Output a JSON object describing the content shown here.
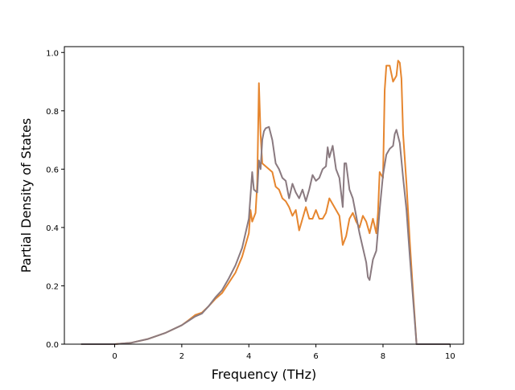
{
  "chart_data": {
    "type": "line",
    "title": "",
    "xlabel": "Frequency (THz)",
    "ylabel": "Partial Density of States",
    "xlim": [
      -1.5,
      10.4
    ],
    "ylim": [
      0.0,
      1.02
    ],
    "x_ticks": [
      0,
      2,
      4,
      6,
      8,
      10
    ],
    "x_tick_labels": [
      "0",
      "2",
      "4",
      "6",
      "8",
      "10"
    ],
    "y_ticks": [
      0.0,
      0.2,
      0.4,
      0.6,
      0.8,
      1.0
    ],
    "y_tick_labels": [
      "0.0",
      "0.2",
      "0.4",
      "0.6",
      "0.8",
      "1.0"
    ],
    "grid": false,
    "legend": "none",
    "series": [
      {
        "color": "#e6862f",
        "points": [
          [
            -1.0,
            0.0
          ],
          [
            0.0,
            0.0
          ],
          [
            0.5,
            0.005
          ],
          [
            1.0,
            0.018
          ],
          [
            1.5,
            0.038
          ],
          [
            2.0,
            0.065
          ],
          [
            2.2,
            0.082
          ],
          [
            2.4,
            0.1
          ],
          [
            2.6,
            0.108
          ],
          [
            2.8,
            0.13
          ],
          [
            3.0,
            0.155
          ],
          [
            3.2,
            0.175
          ],
          [
            3.4,
            0.21
          ],
          [
            3.6,
            0.245
          ],
          [
            3.8,
            0.3
          ],
          [
            4.0,
            0.38
          ],
          [
            4.05,
            0.46
          ],
          [
            4.1,
            0.42
          ],
          [
            4.2,
            0.45
          ],
          [
            4.25,
            0.55
          ],
          [
            4.3,
            0.895
          ],
          [
            4.35,
            0.72
          ],
          [
            4.4,
            0.62
          ],
          [
            4.5,
            0.61
          ],
          [
            4.6,
            0.6
          ],
          [
            4.7,
            0.59
          ],
          [
            4.8,
            0.54
          ],
          [
            4.9,
            0.53
          ],
          [
            5.0,
            0.5
          ],
          [
            5.1,
            0.49
          ],
          [
            5.2,
            0.47
          ],
          [
            5.3,
            0.44
          ],
          [
            5.4,
            0.46
          ],
          [
            5.5,
            0.39
          ],
          [
            5.6,
            0.43
          ],
          [
            5.7,
            0.47
          ],
          [
            5.8,
            0.43
          ],
          [
            5.9,
            0.43
          ],
          [
            6.0,
            0.46
          ],
          [
            6.1,
            0.43
          ],
          [
            6.2,
            0.43
          ],
          [
            6.3,
            0.45
          ],
          [
            6.4,
            0.5
          ],
          [
            6.5,
            0.48
          ],
          [
            6.6,
            0.46
          ],
          [
            6.7,
            0.44
          ],
          [
            6.8,
            0.34
          ],
          [
            6.9,
            0.37
          ],
          [
            7.0,
            0.43
          ],
          [
            7.1,
            0.45
          ],
          [
            7.2,
            0.42
          ],
          [
            7.3,
            0.4
          ],
          [
            7.4,
            0.44
          ],
          [
            7.5,
            0.42
          ],
          [
            7.6,
            0.38
          ],
          [
            7.7,
            0.43
          ],
          [
            7.8,
            0.38
          ],
          [
            7.85,
            0.45
          ],
          [
            7.9,
            0.59
          ],
          [
            8.0,
            0.57
          ],
          [
            8.05,
            0.87
          ],
          [
            8.1,
            0.955
          ],
          [
            8.2,
            0.955
          ],
          [
            8.3,
            0.9
          ],
          [
            8.4,
            0.92
          ],
          [
            8.45,
            0.972
          ],
          [
            8.5,
            0.965
          ],
          [
            8.55,
            0.91
          ],
          [
            8.6,
            0.72
          ],
          [
            8.7,
            0.55
          ],
          [
            8.8,
            0.35
          ],
          [
            8.9,
            0.17
          ],
          [
            9.0,
            0.0
          ],
          [
            9.5,
            0.0
          ],
          [
            10.0,
            0.0
          ]
        ]
      },
      {
        "color": "#8a7a80",
        "points": [
          [
            -1.0,
            0.0
          ],
          [
            0.0,
            0.0
          ],
          [
            0.5,
            0.005
          ],
          [
            1.0,
            0.018
          ],
          [
            1.5,
            0.038
          ],
          [
            2.0,
            0.065
          ],
          [
            2.2,
            0.08
          ],
          [
            2.4,
            0.095
          ],
          [
            2.6,
            0.105
          ],
          [
            2.8,
            0.13
          ],
          [
            3.0,
            0.16
          ],
          [
            3.2,
            0.185
          ],
          [
            3.4,
            0.225
          ],
          [
            3.6,
            0.27
          ],
          [
            3.8,
            0.33
          ],
          [
            4.0,
            0.43
          ],
          [
            4.1,
            0.59
          ],
          [
            4.15,
            0.53
          ],
          [
            4.25,
            0.52
          ],
          [
            4.3,
            0.63
          ],
          [
            4.35,
            0.6
          ],
          [
            4.4,
            0.7
          ],
          [
            4.45,
            0.73
          ],
          [
            4.5,
            0.74
          ],
          [
            4.6,
            0.745
          ],
          [
            4.7,
            0.7
          ],
          [
            4.8,
            0.62
          ],
          [
            4.9,
            0.6
          ],
          [
            5.0,
            0.57
          ],
          [
            5.1,
            0.56
          ],
          [
            5.2,
            0.5
          ],
          [
            5.3,
            0.55
          ],
          [
            5.4,
            0.52
          ],
          [
            5.5,
            0.5
          ],
          [
            5.6,
            0.53
          ],
          [
            5.7,
            0.49
          ],
          [
            5.8,
            0.53
          ],
          [
            5.9,
            0.58
          ],
          [
            6.0,
            0.56
          ],
          [
            6.1,
            0.57
          ],
          [
            6.2,
            0.6
          ],
          [
            6.3,
            0.61
          ],
          [
            6.35,
            0.675
          ],
          [
            6.4,
            0.64
          ],
          [
            6.5,
            0.68
          ],
          [
            6.6,
            0.6
          ],
          [
            6.7,
            0.57
          ],
          [
            6.8,
            0.47
          ],
          [
            6.85,
            0.62
          ],
          [
            6.9,
            0.62
          ],
          [
            7.0,
            0.53
          ],
          [
            7.1,
            0.5
          ],
          [
            7.2,
            0.44
          ],
          [
            7.3,
            0.38
          ],
          [
            7.4,
            0.33
          ],
          [
            7.5,
            0.28
          ],
          [
            7.55,
            0.23
          ],
          [
            7.6,
            0.22
          ],
          [
            7.7,
            0.29
          ],
          [
            7.8,
            0.32
          ],
          [
            7.85,
            0.39
          ],
          [
            7.9,
            0.46
          ],
          [
            8.0,
            0.58
          ],
          [
            8.1,
            0.65
          ],
          [
            8.2,
            0.67
          ],
          [
            8.3,
            0.68
          ],
          [
            8.35,
            0.72
          ],
          [
            8.4,
            0.735
          ],
          [
            8.5,
            0.69
          ],
          [
            8.6,
            0.57
          ],
          [
            8.7,
            0.46
          ],
          [
            8.8,
            0.3
          ],
          [
            8.9,
            0.15
          ],
          [
            9.0,
            0.0
          ],
          [
            9.5,
            0.0
          ],
          [
            10.0,
            0.0
          ]
        ]
      }
    ]
  }
}
